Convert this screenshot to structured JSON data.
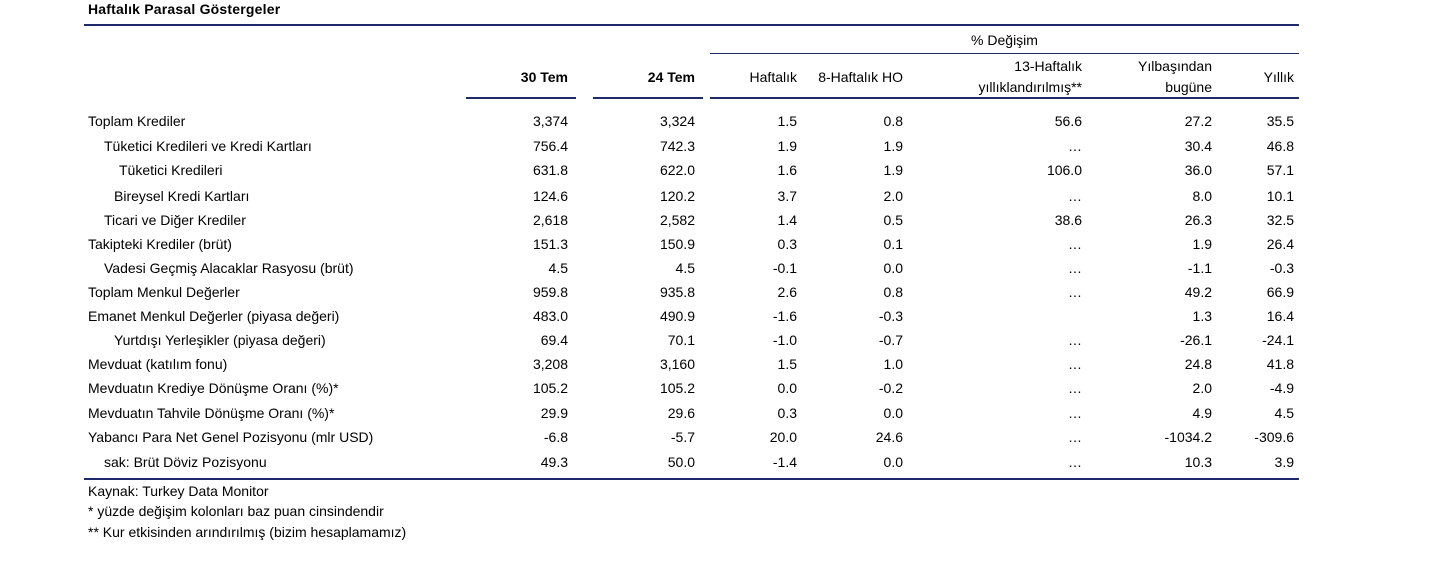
{
  "title": "Haftalık Parasal Göstergeler",
  "header": {
    "group_label": "% Değişim",
    "col1": "30 Tem",
    "col2": "24 Tem",
    "col3": "Haftalık",
    "col4": "8-Haftalık HO",
    "col5_line1": "13-Haftalık",
    "col5_line2": "yıllıklandırılmış**",
    "col6_line1": "Yılbaşından",
    "col6_line2": "bugüne",
    "col7": "Yıllık"
  },
  "rows": [
    {
      "label": "Toplam Krediler",
      "v1": "3,374",
      "v2": "3,324",
      "v3": "1.5",
      "v4": "0.8",
      "v5": "56.6",
      "v6": "27.2",
      "v7": "35.5"
    },
    {
      "label": "Tüketici Kredileri ve Kredi Kartları",
      "v1": "756.4",
      "v2": "742.3",
      "v3": "1.9",
      "v4": "1.9",
      "v5": "…",
      "v6": "30.4",
      "v7": "46.8"
    },
    {
      "label": "Tüketici Kredileri",
      "v1": "631.8",
      "v2": "622.0",
      "v3": "1.6",
      "v4": "1.9",
      "v5": "106.0",
      "v6": "36.0",
      "v7": "57.1"
    },
    {
      "label": "Bireysel Kredi Kartları",
      "v1": "124.6",
      "v2": "120.2",
      "v3": "3.7",
      "v4": "2.0",
      "v5": "…",
      "v6": "8.0",
      "v7": "10.1"
    },
    {
      "label": "Ticari ve Diğer Krediler",
      "v1": "2,618",
      "v2": "2,582",
      "v3": "1.4",
      "v4": "0.5",
      "v5": "38.6",
      "v6": "26.3",
      "v7": "32.5"
    },
    {
      "label": "Takipteki Krediler (brüt)",
      "v1": "151.3",
      "v2": "150.9",
      "v3": "0.3",
      "v4": "0.1",
      "v5": "…",
      "v6": "1.9",
      "v7": "26.4"
    },
    {
      "label": "Vadesi Geçmiş Alacaklar Rasyosu (brüt)",
      "v1": "4.5",
      "v2": "4.5",
      "v3": "-0.1",
      "v4": "0.0",
      "v5": "…",
      "v6": "-1.1",
      "v7": "-0.3"
    },
    {
      "label": "Toplam Menkul Değerler",
      "v1": "959.8",
      "v2": "935.8",
      "v3": "2.6",
      "v4": "0.8",
      "v5": "…",
      "v6": "49.2",
      "v7": "66.9"
    },
    {
      "label": "Emanet Menkul Değerler (piyasa değeri)",
      "v1": "483.0",
      "v2": "490.9",
      "v3": "-1.6",
      "v4": "-0.3",
      "v5": "",
      "v6": "1.3",
      "v7": "16.4"
    },
    {
      "label": "Yurtdışı Yerleşikler (piyasa değeri)",
      "v1": "69.4",
      "v2": "70.1",
      "v3": "-1.0",
      "v4": "-0.7",
      "v5": "…",
      "v6": "-26.1",
      "v7": "-24.1"
    },
    {
      "label": "Mevduat (katılım fonu)",
      "v1": "3,208",
      "v2": "3,160",
      "v3": "1.5",
      "v4": "1.0",
      "v5": "…",
      "v6": "24.8",
      "v7": "41.8"
    },
    {
      "label": "Mevduatın Krediye Dönüşme Oranı (%)*",
      "v1": "105.2",
      "v2": "105.2",
      "v3": "0.0",
      "v4": "-0.2",
      "v5": "…",
      "v6": "2.0",
      "v7": "-4.9"
    },
    {
      "label": "Mevduatın Tahvile Dönüşme Oranı (%)*",
      "v1": "29.9",
      "v2": "29.6",
      "v3": "0.3",
      "v4": "0.0",
      "v5": "…",
      "v6": "4.9",
      "v7": "4.5"
    },
    {
      "label": "Yabancı Para Net Genel Pozisyonu (mlr USD)",
      "v1": "-6.8",
      "v2": "-5.7",
      "v3": "20.0",
      "v4": "24.6",
      "v5": "…",
      "v6": "-1034.2",
      "v7": "-309.6"
    },
    {
      "label": "sak: Brüt Döviz Pozisyonu",
      "v1": "49.3",
      "v2": "50.0",
      "v3": "-1.4",
      "v4": "0.0",
      "v5": "…",
      "v6": "10.3",
      "v7": "3.9"
    }
  ],
  "footnotes": {
    "source": "Kaynak: Turkey Data Monitor",
    "note1": "* yüzde değişim kolonları baz puan cinsindendir",
    "note2": "** Kur etkisinden arındırılmış (bizim hesaplamamız)"
  },
  "colors": {
    "rule": "#1f2a6b",
    "text": "#000000"
  }
}
